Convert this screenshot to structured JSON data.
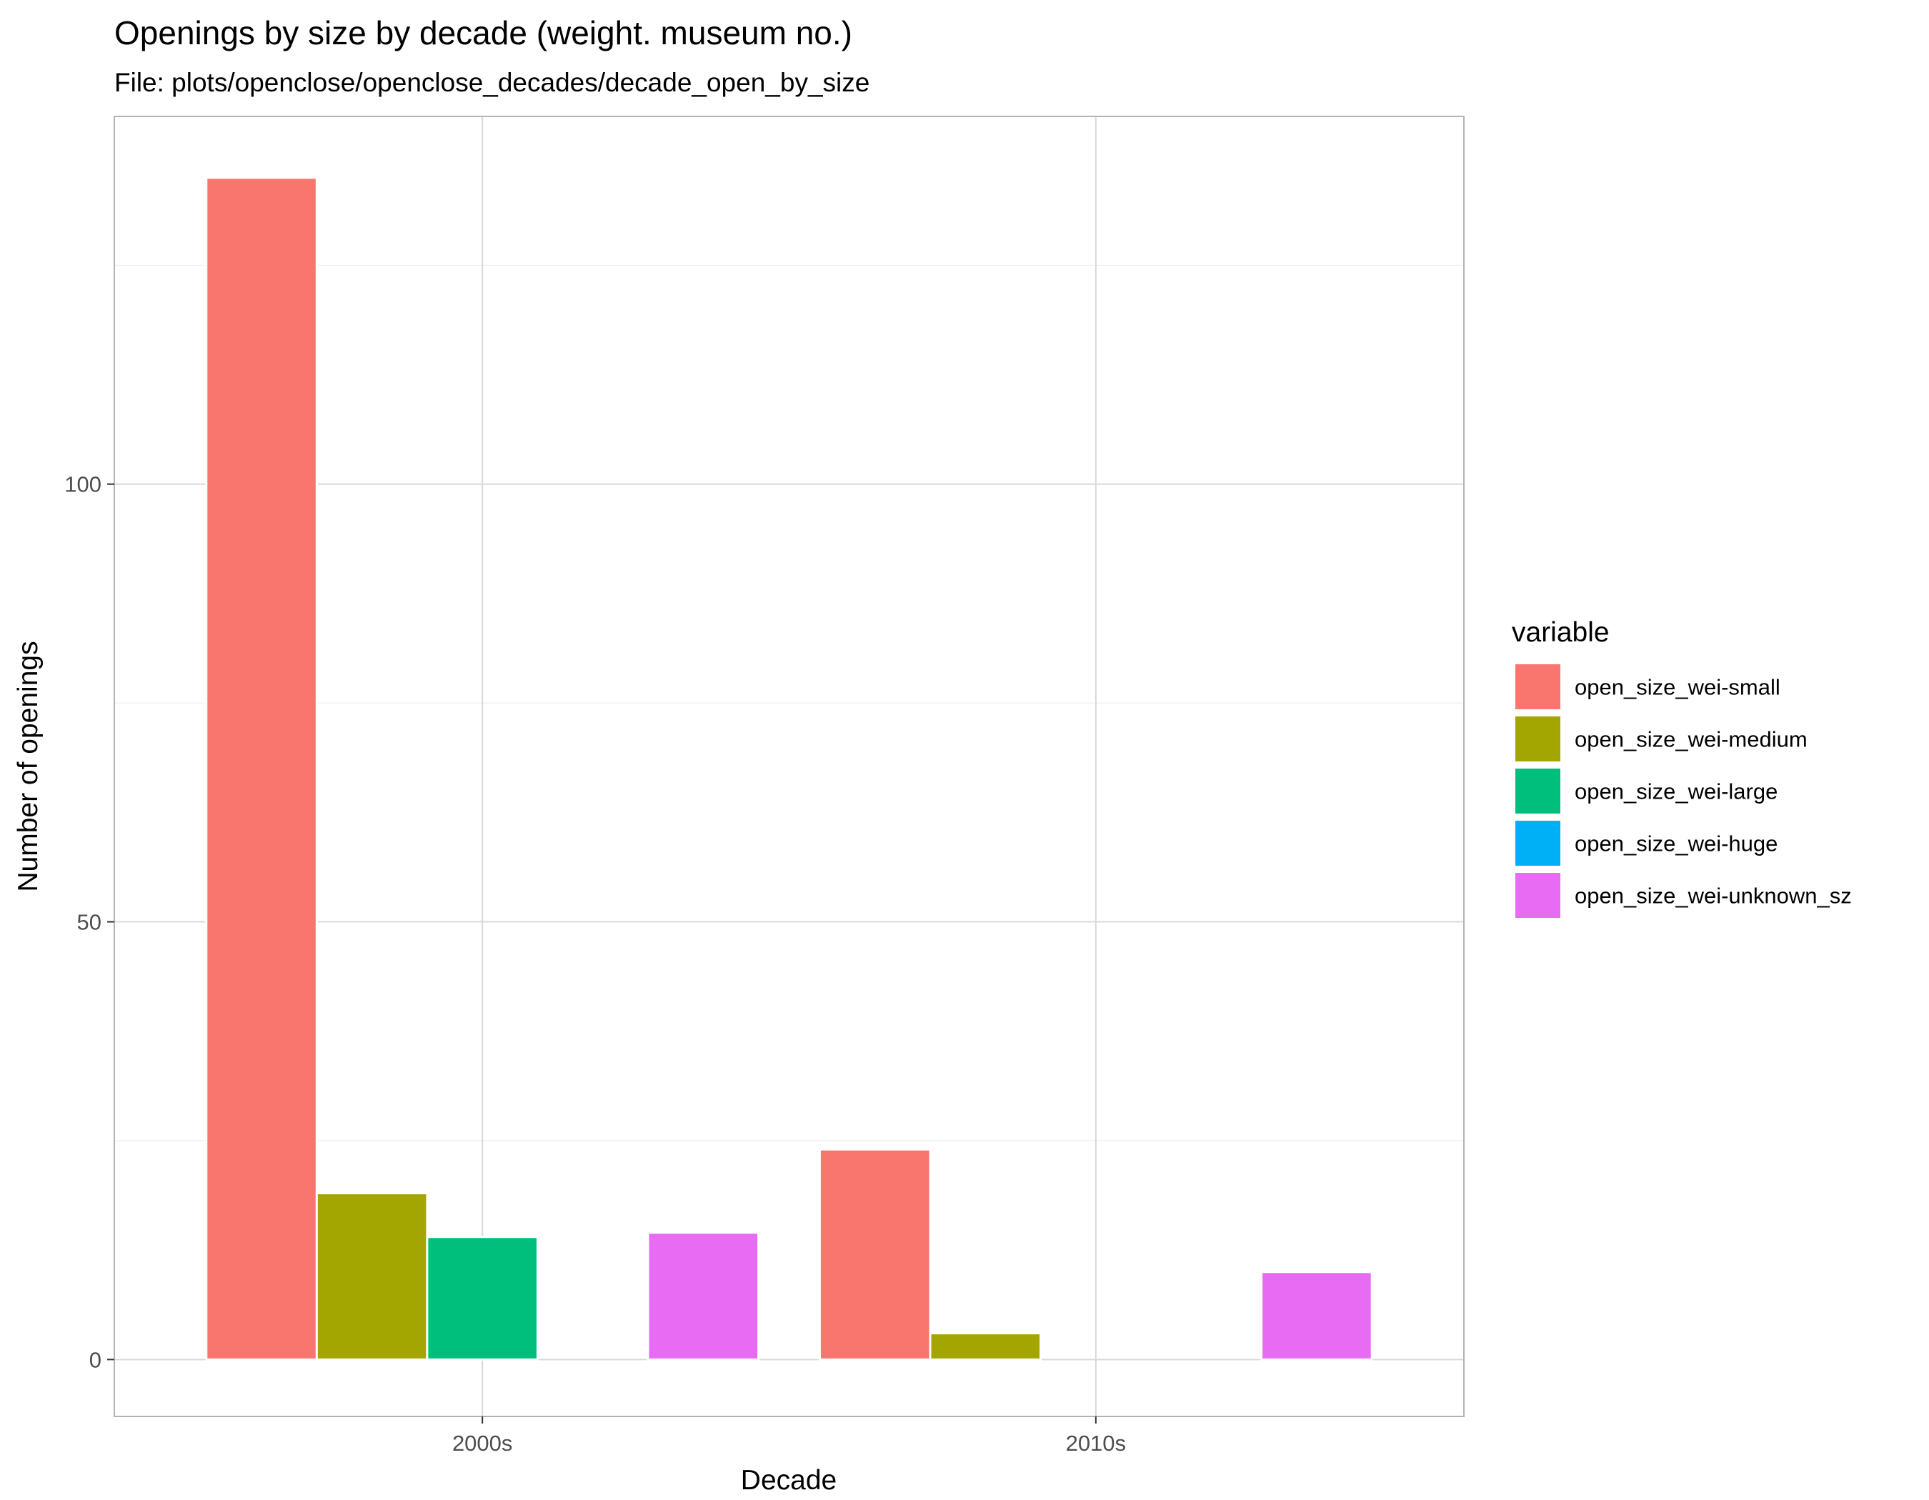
{
  "chart_data": {
    "type": "bar",
    "title": "Openings by size by decade (weight. museum no.)",
    "subtitle": "File: plots/openclose/openclose_decades/decade_open_by_size",
    "xlabel": "Decade",
    "ylabel": "Number of openings",
    "categories": [
      "2000s",
      "2010s"
    ],
    "ylim": [
      -6.5,
      142
    ],
    "yticks": [
      0,
      50,
      100
    ],
    "grid": true,
    "legend": {
      "title": "variable",
      "position": "right"
    },
    "series": [
      {
        "name": "open_size_wei-small",
        "color": "#F8766D",
        "values": [
          135,
          24
        ]
      },
      {
        "name": "open_size_wei-medium",
        "color": "#A3A500",
        "values": [
          19,
          3
        ]
      },
      {
        "name": "open_size_wei-large",
        "color": "#00BF7D",
        "values": [
          14,
          0
        ]
      },
      {
        "name": "open_size_wei-huge",
        "color": "#00B0F6",
        "values": [
          0,
          0
        ]
      },
      {
        "name": "open_size_wei-unknown_sz",
        "color": "#E76BF3",
        "values": [
          14.5,
          10
        ]
      }
    ]
  }
}
